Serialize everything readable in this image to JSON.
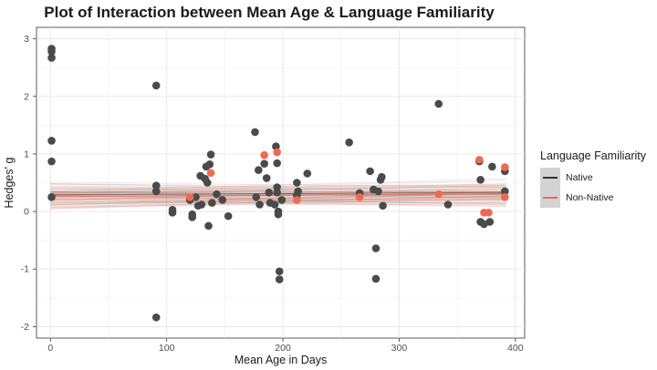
{
  "chart_data": {
    "type": "scatter",
    "title": "Plot of Interaction between Mean Age & Language Familiarity",
    "xlabel": "Mean Age in Days",
    "ylabel": "Hedges' g",
    "xlim": [
      -12,
      408
    ],
    "ylim": [
      -2.2,
      3.2
    ],
    "xticks": [
      0,
      100,
      200,
      300,
      400
    ],
    "yticks": [
      -2,
      -1,
      0,
      1,
      2,
      3
    ],
    "grid": true,
    "legend_position": "right",
    "legend_title": "Language Familiarity",
    "series": [
      {
        "name": "Native",
        "color": "#4a4a4a",
        "points": [
          [
            1,
            2.83
          ],
          [
            1,
            2.78
          ],
          [
            1,
            2.67
          ],
          [
            1,
            1.23
          ],
          [
            1,
            0.87
          ],
          [
            1,
            0.25
          ],
          [
            91,
            2.19
          ],
          [
            91,
            0.45
          ],
          [
            91,
            0.35
          ],
          [
            91,
            -1.84
          ],
          [
            105,
            0.03
          ],
          [
            105,
            -0.02
          ],
          [
            120,
            0.2
          ],
          [
            122,
            -0.05
          ],
          [
            122,
            -0.1
          ],
          [
            125,
            0.25
          ],
          [
            127,
            0.1
          ],
          [
            129,
            0.62
          ],
          [
            130,
            0.12
          ],
          [
            133,
            0.57
          ],
          [
            134,
            0.78
          ],
          [
            135,
            0.5
          ],
          [
            136,
            -0.25
          ],
          [
            137,
            0.82
          ],
          [
            138,
            0.99
          ],
          [
            139,
            0.15
          ],
          [
            143,
            0.3
          ],
          [
            148,
            0.2
          ],
          [
            153,
            -0.08
          ],
          [
            176,
            1.38
          ],
          [
            177,
            0.25
          ],
          [
            179,
            0.72
          ],
          [
            180,
            0.12
          ],
          [
            184,
            0.83
          ],
          [
            186,
            0.58
          ],
          [
            188,
            0.33
          ],
          [
            189,
            0.15
          ],
          [
            193,
            0.12
          ],
          [
            194,
            1.13
          ],
          [
            195,
            0.84
          ],
          [
            195,
            0.42
          ],
          [
            195,
            0.33
          ],
          [
            196,
            0.0
          ],
          [
            196,
            -0.05
          ],
          [
            197,
            -1.04
          ],
          [
            197,
            -1.18
          ],
          [
            199,
            0.2
          ],
          [
            212,
            0.5
          ],
          [
            212,
            0.28
          ],
          [
            213,
            0.35
          ],
          [
            221,
            0.66
          ],
          [
            257,
            1.2
          ],
          [
            266,
            0.32
          ],
          [
            275,
            0.7
          ],
          [
            278,
            0.38
          ],
          [
            280,
            -0.64
          ],
          [
            280,
            -1.17
          ],
          [
            282,
            0.35
          ],
          [
            284,
            0.55
          ],
          [
            285,
            0.6
          ],
          [
            286,
            0.1
          ],
          [
            334,
            1.87
          ],
          [
            342,
            0.12
          ],
          [
            369,
            0.87
          ],
          [
            370,
            0.55
          ],
          [
            370,
            -0.18
          ],
          [
            373,
            -0.22
          ],
          [
            378,
            -0.18
          ],
          [
            380,
            0.78
          ],
          [
            391,
            0.7
          ],
          [
            391,
            0.35
          ]
        ]
      },
      {
        "name": "Non-Native",
        "color": "#f2694f",
        "points": [
          [
            120,
            0.25
          ],
          [
            138,
            0.67
          ],
          [
            184,
            0.98
          ],
          [
            195,
            1.03
          ],
          [
            212,
            0.2
          ],
          [
            266,
            0.25
          ],
          [
            334,
            0.3
          ],
          [
            369,
            0.9
          ],
          [
            373,
            -0.02
          ],
          [
            377,
            -0.02
          ],
          [
            391,
            0.77
          ],
          [
            391,
            0.25
          ]
        ]
      }
    ],
    "regression_lines": {
      "Native": {
        "intercept": 0.31,
        "slope": 0.0001
      },
      "Non-Native": {
        "intercept": 0.28,
        "slope": 0.0001
      }
    }
  }
}
